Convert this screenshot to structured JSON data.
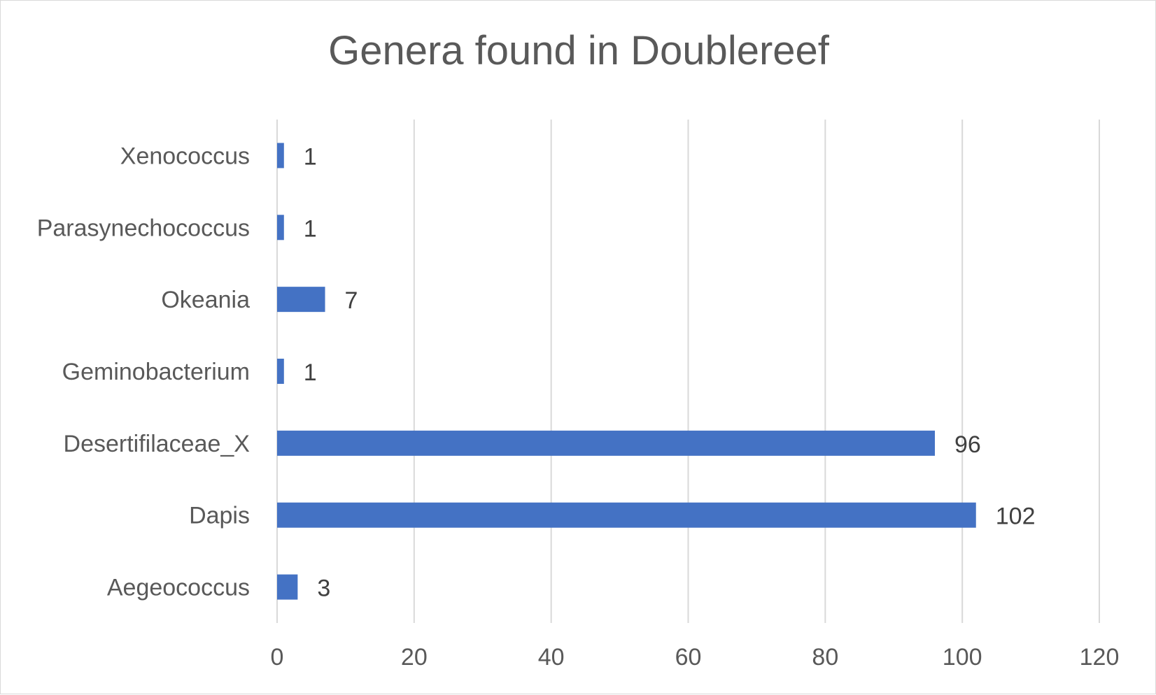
{
  "chart_data": {
    "type": "bar",
    "orientation": "horizontal",
    "title": "Genera found in Doublereef",
    "categories": [
      "Aegeococcus",
      "Dapis",
      "Desertifilaceae_X",
      "Geminobacterium",
      "Okeania",
      "Parasynechococcus",
      "Xenococcus"
    ],
    "values": [
      3,
      102,
      96,
      1,
      7,
      1,
      1
    ],
    "xlim": [
      0,
      120
    ],
    "xticks": [
      0,
      20,
      40,
      60,
      80,
      100,
      120
    ],
    "grid": "vertical",
    "legend": "none",
    "data_labels": true,
    "bar_color": "#4472C4"
  }
}
